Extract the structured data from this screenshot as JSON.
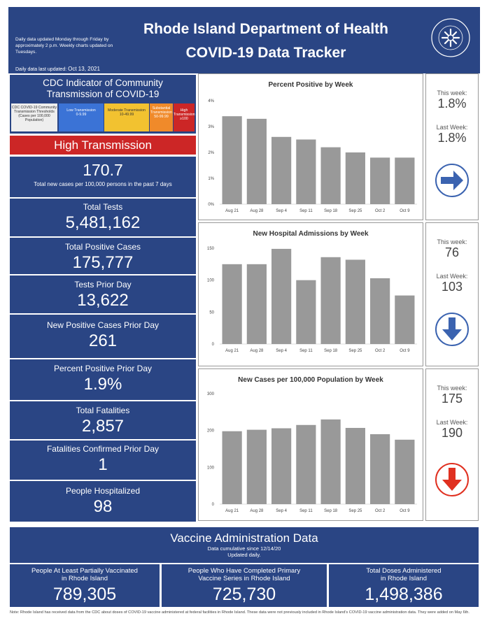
{
  "header": {
    "note": "Daily data updated Monday through Friday by approximately 2 p.m. Weekly charts updated on Tuesdays.",
    "last_updated_label": "Daily data last updated:",
    "last_updated_value": "Oct 13, 2021",
    "title_line1": "Rhode Island Department of Health",
    "title_line2": "COVID-19 Data Tracker",
    "seal_text": "RHODE ISLAND DEPARTMENT OF HEALTH"
  },
  "cdc": {
    "heading_line1": "CDC Indicator of Community",
    "heading_line2": "Transmission of COVID-19",
    "legend": [
      {
        "label": "CDC COVID-19 Community Transmission Thresholds (Cases per 100,000 Population)",
        "range": "",
        "color": "#eeeeee",
        "text_color": "#333333"
      },
      {
        "label": "Low Transmission",
        "range": "0-9.99",
        "color": "#3b73d6",
        "text_color": "#ffffff"
      },
      {
        "label": "Moderate Transmission",
        "range": "10-49.99",
        "color": "#f2c230",
        "text_color": "#333333"
      },
      {
        "label": "Substantial Transmission",
        "range": "50-99.99",
        "color": "#f08a2a",
        "text_color": "#ffffff"
      },
      {
        "label": "High Transmission",
        "range": "≥100",
        "color": "#cc2626",
        "text_color": "#ffffff"
      }
    ],
    "level": "High Transmission",
    "level_color": "#cc2626",
    "rate_value": "170.7",
    "rate_label": "Total new cases per 100,000 persons in the past 7 days"
  },
  "stats": {
    "total_tests": {
      "label": "Total Tests",
      "value": "5,481,162"
    },
    "total_positive": {
      "label": "Total Positive Cases",
      "value": "175,777"
    },
    "tests_prior_day": {
      "label": "Tests Prior Day",
      "value": "13,622"
    },
    "new_positive_prior_day": {
      "label": "New Positive Cases Prior Day",
      "value": "261"
    },
    "percent_positive_prior_day": {
      "label": "Percent Positive Prior Day",
      "value": "1.9%"
    },
    "total_fatalities": {
      "label": "Total Fatalities",
      "value": "2,857"
    },
    "fatalities_prior_day": {
      "label": "Fatalities Confirmed Prior Day",
      "value": "1"
    },
    "hospitalized": {
      "label": "People Hospitalized",
      "value": "98"
    }
  },
  "side": {
    "pct": {
      "this_week_label": "This week:",
      "this_week": "1.8%",
      "last_week_label": "Last Week:",
      "last_week": "1.8%",
      "arrow": "right-arrow-icon",
      "arrow_color": "#3b63b0"
    },
    "hosp": {
      "this_week_label": "This week:",
      "this_week": "76",
      "last_week_label": "Last Week:",
      "last_week": "103",
      "arrow": "down-arrow-icon",
      "arrow_color": "#3b63b0"
    },
    "cases": {
      "this_week_label": "This week:",
      "this_week": "175",
      "last_week_label": "Last Week:",
      "last_week": "190",
      "arrow": "down-arrow-icon",
      "arrow_color": "#e03020"
    }
  },
  "chart_data": [
    {
      "type": "bar",
      "title": "Percent Positive by Week",
      "categories": [
        "Aug 21",
        "Aug 28",
        "Sep 4",
        "Sep 11",
        "Sep 18",
        "Sep 25",
        "Oct 2",
        "Oct 9"
      ],
      "values": [
        3.4,
        3.3,
        2.6,
        2.5,
        2.2,
        2.0,
        1.8,
        1.8
      ],
      "yticks": [
        "0%",
        "1%",
        "2%",
        "3%",
        "4%"
      ],
      "ylim": [
        0,
        4
      ],
      "bar_color": "#999999"
    },
    {
      "type": "bar",
      "title": "New Hospital Admissions by Week",
      "categories": [
        "Aug 21",
        "Aug 28",
        "Sep 4",
        "Sep 11",
        "Sep 18",
        "Sep 25",
        "Oct 2",
        "Oct 9"
      ],
      "values": [
        125,
        125,
        149,
        100,
        136,
        132,
        103,
        76
      ],
      "yticks": [
        "0",
        "50",
        "100",
        "150"
      ],
      "ylim": [
        0,
        150
      ],
      "bar_color": "#999999"
    },
    {
      "type": "bar",
      "title": "New Cases per 100,000 Population by Week",
      "categories": [
        "Aug 21",
        "Aug 28",
        "Sep 4",
        "Sep 11",
        "Sep 18",
        "Sep 25",
        "Oct 2",
        "Oct 9"
      ],
      "values": [
        198,
        202,
        206,
        215,
        230,
        207,
        190,
        175
      ],
      "yticks": [
        "0",
        "100",
        "200",
        "300"
      ],
      "ylim": [
        0,
        300
      ],
      "bar_color": "#999999"
    }
  ],
  "vaccine": {
    "title": "Vaccine Administration Data",
    "subtitle1": "Data cumulative since 12/14/20",
    "subtitle2": "Updated daily.",
    "partial": {
      "label1": "People At Least Partially Vaccinated",
      "label2": "in Rhode Island",
      "value": "789,305"
    },
    "complete": {
      "label1": "People Who Have Completed Primary",
      "label2": "Vaccine Series in Rhode Island",
      "value": "725,730"
    },
    "doses": {
      "label1": "Total Doses Administered",
      "label2": "in Rhode Island",
      "value": "1,498,386"
    }
  },
  "footnote": "Note: Rhode Island has received data from the CDC about doses of COVID-19 vaccine administered at federal facilities in Rhode Island. These data were not previously included in Rhode Island's COVID-19 vaccine administration data. They were added on May 6th.",
  "colors": {
    "navy": "#2a4584",
    "red": "#cc2626",
    "bar": "#999999"
  }
}
